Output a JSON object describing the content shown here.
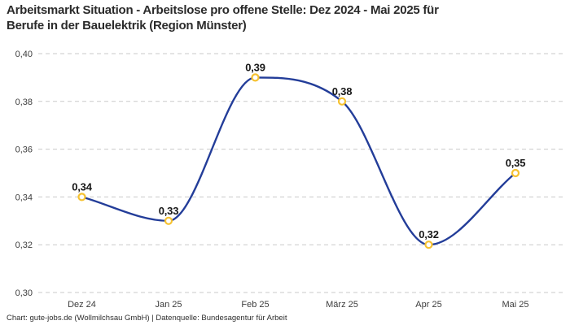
{
  "header": {
    "title_full": "Arbeitsmarkt Situation - Arbeitslose pro offene Stelle: Dez 2024 - Mai 2025 für Berufe in der Bauelektrik (Region Münster)",
    "title_line1": "Arbeitsmarkt Situation - Arbeitslose pro offene Stelle: Dez 2024 - Mai 2025 für",
    "title_line2": "Berufe in der Bauelektrik (Region Münster)"
  },
  "footer": {
    "credit": "Chart: gute-jobs.de (Wollmilchsau GmbH) | Datenquelle: Bundesagentur für Arbeit"
  },
  "chart_data": {
    "type": "line",
    "title": "Arbeitsmarkt Situation - Arbeitslose pro offene Stelle: Dez 2024 - Mai 2025 für Berufe in der Bauelektrik (Region Münster)",
    "xlabel": "",
    "ylabel": "",
    "categories": [
      "Dez 24",
      "Jan 25",
      "Feb 25",
      "März 25",
      "Apr 25",
      "Mai 25"
    ],
    "values": [
      0.34,
      0.33,
      0.39,
      0.38,
      0.32,
      0.35
    ],
    "value_labels": [
      "0,34",
      "0,33",
      "0,39",
      "0,38",
      "0,32",
      "0,35"
    ],
    "y_ticks": [
      0.3,
      0.32,
      0.34,
      0.36,
      0.38,
      0.4
    ],
    "y_tick_labels": [
      "0,30",
      "0,32",
      "0,34",
      "0,36",
      "0,38",
      "0,40"
    ],
    "ylim": [
      0.3,
      0.4
    ],
    "grid": "horizontal-dashed",
    "legend": "none",
    "curve": "monotone-cubic",
    "colors": {
      "line": "#233d99",
      "marker_stroke": "#f6c231",
      "marker_fill": "#ffffff",
      "gridline": "#c9c9c9",
      "tick_text": "#3d3d3d",
      "label_text": "#171717"
    }
  }
}
